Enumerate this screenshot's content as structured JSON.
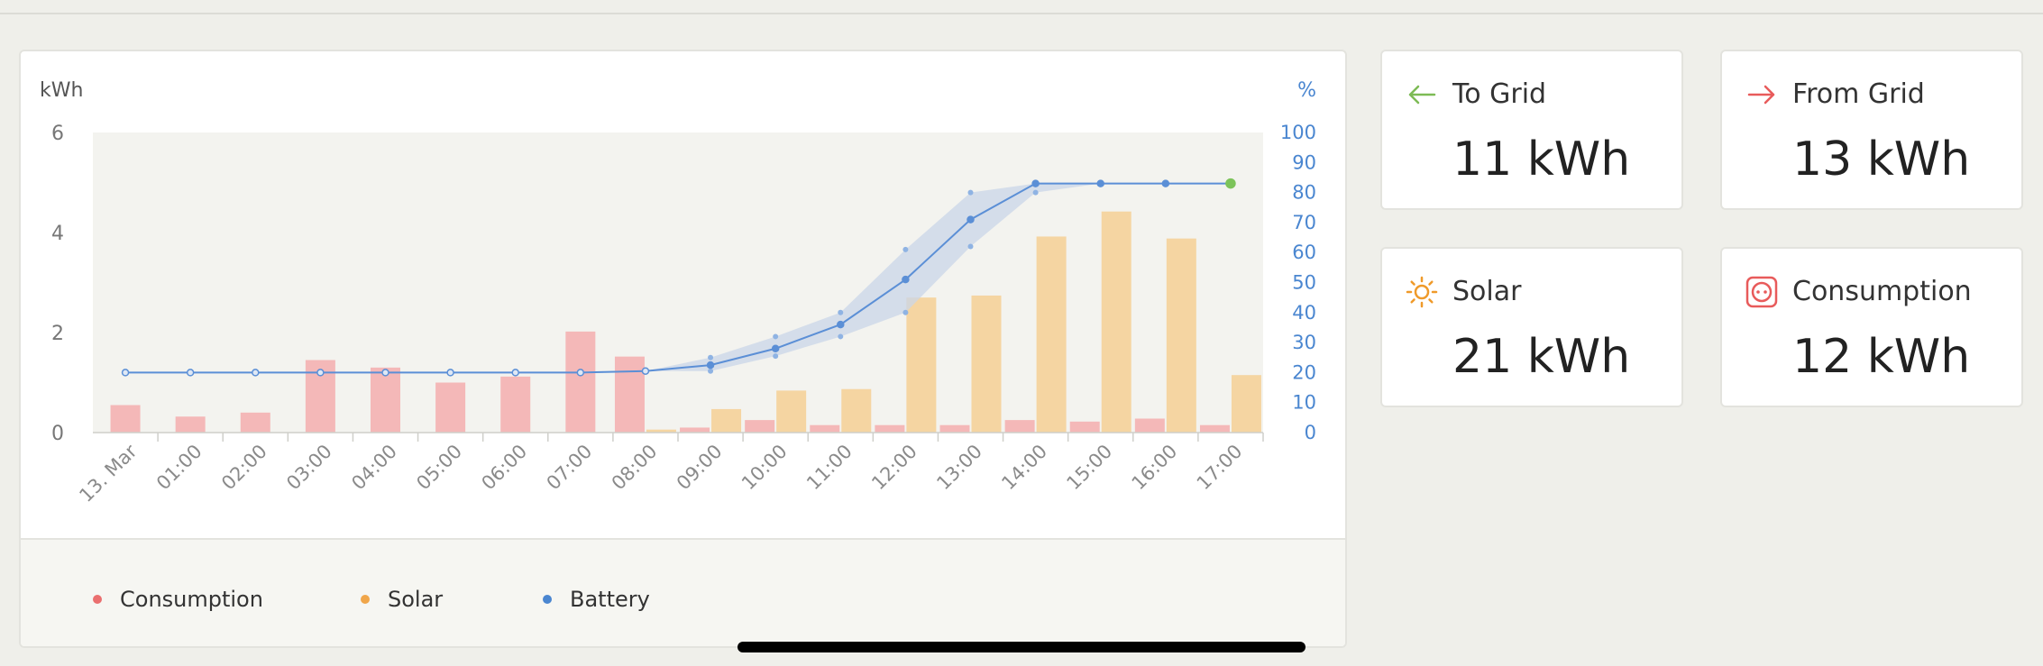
{
  "chart_data": {
    "type": "bar",
    "left_axis_label": "kWh",
    "right_axis_label": "%",
    "left_ylim": [
      0,
      6
    ],
    "left_ticks": [
      "0",
      "2",
      "4",
      "6"
    ],
    "right_ylim": [
      0,
      100
    ],
    "right_ticks": [
      "0",
      "10",
      "20",
      "30",
      "40",
      "50",
      "60",
      "70",
      "80",
      "90",
      "100"
    ],
    "categories": [
      "13. Mar",
      "01:00",
      "02:00",
      "03:00",
      "04:00",
      "05:00",
      "06:00",
      "07:00",
      "08:00",
      "09:00",
      "10:00",
      "11:00",
      "12:00",
      "13:00",
      "14:00",
      "15:00",
      "16:00",
      "17:00"
    ],
    "series": [
      {
        "name": "Consumption",
        "kind": "bar",
        "axis": "left",
        "color": "#f4b8b8",
        "values": [
          0.55,
          0.32,
          0.4,
          1.45,
          1.3,
          1.0,
          1.12,
          2.02,
          1.52,
          0.1,
          0.25,
          0.15,
          0.15,
          0.15,
          0.25,
          0.22,
          0.28,
          0.15
        ]
      },
      {
        "name": "Solar",
        "kind": "bar",
        "axis": "left",
        "color": "#f5d5a2",
        "values": [
          0,
          0,
          0,
          0,
          0,
          0,
          0,
          0,
          0.06,
          0.47,
          0.84,
          0.87,
          2.7,
          2.74,
          3.92,
          4.42,
          3.88,
          1.15
        ]
      },
      {
        "name": "Battery",
        "kind": "line",
        "axis": "right",
        "color": "#5b8fd6",
        "values": [
          20,
          20,
          20,
          20,
          20,
          20,
          20,
          20,
          20.5,
          22.5,
          28,
          36,
          51,
          71,
          83,
          83,
          83,
          83
        ],
        "band_upper": [
          20,
          20,
          20,
          20,
          20,
          20,
          20,
          20,
          20.5,
          25,
          32,
          40,
          61,
          80,
          83,
          83,
          83,
          83
        ],
        "band_lower": [
          20,
          20,
          20,
          20,
          20,
          20,
          20,
          20,
          20.5,
          20.5,
          25.5,
          32,
          40,
          62,
          80,
          83,
          83,
          83
        ]
      }
    ],
    "legend": [
      {
        "label": "Consumption",
        "color": "#ea6f6f"
      },
      {
        "label": "Solar",
        "color": "#f0a64a"
      },
      {
        "label": "Battery",
        "color": "#4a86d0"
      }
    ],
    "legend_position": "bottom"
  },
  "stats": [
    {
      "label": "To Grid",
      "value": "11 kWh",
      "icon": "arrow-left-icon",
      "color": "#7dbb55"
    },
    {
      "label": "From Grid",
      "value": "13 kWh",
      "icon": "arrow-right-icon",
      "color": "#e85b5b"
    },
    {
      "label": "Solar",
      "value": "21 kWh",
      "icon": "sun-icon",
      "color": "#ef9a2a"
    },
    {
      "label": "Consumption",
      "value": "12 kWh",
      "icon": "socket-icon",
      "color": "#e85b5b"
    }
  ]
}
